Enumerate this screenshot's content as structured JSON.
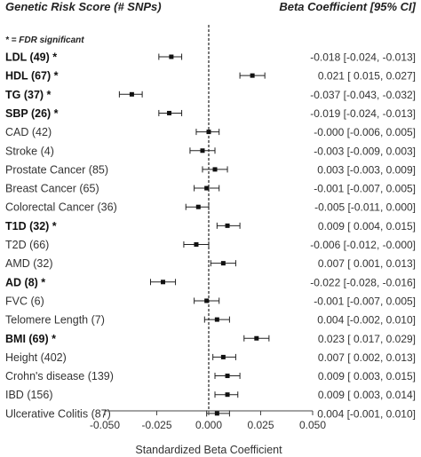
{
  "header": {
    "left": "Genetic Risk Score (# SNPs)",
    "right": "Beta Coefficient [95% CI]",
    "note": "* = FDR significant"
  },
  "chart_data": {
    "type": "forest",
    "xlabel": "Standardized Beta Coefficient",
    "xlim": [
      -0.05,
      0.05
    ],
    "xticks": [
      "-0.050",
      "-0.025",
      "0.000",
      "0.025",
      "0.050"
    ],
    "reference_line": 0,
    "rows": [
      {
        "name": "LDL",
        "count": "(49)",
        "sig": true,
        "beta": -0.018,
        "lo": -0.024,
        "hi": -0.013,
        "text": "-0.018 [-0.024, -0.013]"
      },
      {
        "name": "HDL",
        "count": "(67)",
        "sig": true,
        "beta": 0.021,
        "lo": 0.015,
        "hi": 0.027,
        "text": "0.021 [ 0.015, 0.027]"
      },
      {
        "name": "TG",
        "count": "(37)",
        "sig": true,
        "beta": -0.037,
        "lo": -0.043,
        "hi": -0.032,
        "text": "-0.037 [-0.043, -0.032]"
      },
      {
        "name": "SBP",
        "count": "(26)",
        "sig": true,
        "beta": -0.019,
        "lo": -0.024,
        "hi": -0.013,
        "text": "-0.019 [-0.024, -0.013]"
      },
      {
        "name": "CAD",
        "count": "(42)",
        "sig": false,
        "beta": -0.0,
        "lo": -0.006,
        "hi": 0.005,
        "text": "-0.000 [-0.006, 0.005]"
      },
      {
        "name": "Stroke",
        "count": "(4)",
        "sig": false,
        "beta": -0.003,
        "lo": -0.009,
        "hi": 0.003,
        "text": "-0.003 [-0.009, 0.003]"
      },
      {
        "name": "Prostate Cancer",
        "count": "(85)",
        "sig": false,
        "beta": 0.003,
        "lo": -0.003,
        "hi": 0.009,
        "text": "0.003 [-0.003, 0.009]"
      },
      {
        "name": "Breast Cancer",
        "count": "(65)",
        "sig": false,
        "beta": -0.001,
        "lo": -0.007,
        "hi": 0.005,
        "text": "-0.001 [-0.007, 0.005]"
      },
      {
        "name": "Colorectal Cancer",
        "count": "(36)",
        "sig": false,
        "beta": -0.005,
        "lo": -0.011,
        "hi": 0.0,
        "text": "-0.005 [-0.011, 0.000]"
      },
      {
        "name": "T1D",
        "count": "(32)",
        "sig": true,
        "beta": 0.009,
        "lo": 0.004,
        "hi": 0.015,
        "text": "0.009 [ 0.004, 0.015]"
      },
      {
        "name": "T2D",
        "count": "(66)",
        "sig": false,
        "beta": -0.006,
        "lo": -0.012,
        "hi": -0.0,
        "text": "-0.006 [-0.012, -0.000]"
      },
      {
        "name": "AMD",
        "count": "(32)",
        "sig": false,
        "beta": 0.007,
        "lo": 0.001,
        "hi": 0.013,
        "text": "0.007 [ 0.001, 0.013]"
      },
      {
        "name": "AD",
        "count": "(8)",
        "sig": true,
        "beta": -0.022,
        "lo": -0.028,
        "hi": -0.016,
        "text": "-0.022 [-0.028, -0.016]"
      },
      {
        "name": "FVC",
        "count": "(6)",
        "sig": false,
        "beta": -0.001,
        "lo": -0.007,
        "hi": 0.005,
        "text": "-0.001 [-0.007, 0.005]"
      },
      {
        "name": "Telomere Length",
        "count": "(7)",
        "sig": false,
        "beta": 0.004,
        "lo": -0.002,
        "hi": 0.01,
        "text": "0.004 [-0.002, 0.010]"
      },
      {
        "name": "BMI",
        "count": "(69)",
        "sig": true,
        "beta": 0.023,
        "lo": 0.017,
        "hi": 0.029,
        "text": "0.023 [ 0.017, 0.029]"
      },
      {
        "name": "Height",
        "count": "(402)",
        "sig": false,
        "beta": 0.007,
        "lo": 0.002,
        "hi": 0.013,
        "text": "0.007 [ 0.002, 0.013]"
      },
      {
        "name": "Crohn's disease",
        "count": "(139)",
        "sig": false,
        "beta": 0.009,
        "lo": 0.003,
        "hi": 0.015,
        "text": "0.009 [ 0.003, 0.015]"
      },
      {
        "name": "IBD",
        "count": "(156)",
        "sig": false,
        "beta": 0.009,
        "lo": 0.003,
        "hi": 0.014,
        "text": "0.009 [ 0.003, 0.014]"
      },
      {
        "name": "Ulcerative Colitis",
        "count": "(87)",
        "sig": false,
        "beta": 0.004,
        "lo": -0.001,
        "hi": 0.01,
        "text": "0.004 [-0.001, 0.010]"
      }
    ],
    "colors": {
      "text": "#333333",
      "marker": "#111111",
      "ci": "#222222"
    }
  }
}
